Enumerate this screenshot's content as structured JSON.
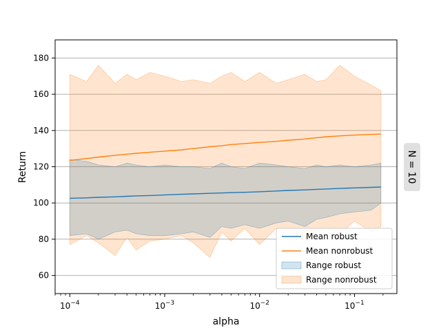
{
  "chart_data": {
    "type": "area",
    "title": "",
    "xlabel": "alpha",
    "ylabel": "Return",
    "xscale": "log",
    "xlim": [
      7e-05,
      0.28
    ],
    "ylim": [
      50,
      190
    ],
    "xticks": [
      {
        "value": 0.0001,
        "base": "10",
        "exp": "−4"
      },
      {
        "value": 0.001,
        "base": "10",
        "exp": "−3"
      },
      {
        "value": 0.01,
        "base": "10",
        "exp": "−2"
      },
      {
        "value": 0.1,
        "base": "10",
        "exp": "−1"
      }
    ],
    "yticks": [
      60,
      80,
      100,
      120,
      140,
      160,
      180
    ],
    "grid": "horizontal",
    "legend_position": "lower-right",
    "facet_label": "N = 10",
    "colors": {
      "robust": "#1f77b4",
      "nonrobust": "#ff7f0e",
      "robust_fill": "#1f77b4",
      "nonrobust_fill": "#ff7f0e",
      "grid": "#b0b0b0",
      "facet_box": "#e0e0e0"
    },
    "x": [
      0.0001,
      0.00015,
      0.0002,
      0.0003,
      0.0004,
      0.0005,
      0.0007,
      0.001,
      0.0015,
      0.002,
      0.003,
      0.004,
      0.005,
      0.007,
      0.01,
      0.015,
      0.02,
      0.03,
      0.04,
      0.05,
      0.07,
      0.1,
      0.15,
      0.19
    ],
    "series": [
      {
        "name": "Mean robust",
        "kind": "line",
        "color": "#1f77b4",
        "values": [
          102.6,
          102.8,
          103.1,
          103.4,
          103.7,
          103.9,
          104.1,
          104.4,
          104.8,
          105.0,
          105.3,
          105.5,
          105.7,
          105.9,
          106.2,
          106.6,
          106.9,
          107.2,
          107.5,
          107.7,
          108.0,
          108.3,
          108.6,
          108.8
        ]
      },
      {
        "name": "Mean nonrobust",
        "kind": "line",
        "color": "#ff7f0e",
        "values": [
          123.5,
          124.5,
          125.3,
          126.3,
          126.9,
          127.4,
          128.0,
          128.6,
          129.3,
          130.0,
          131.0,
          131.6,
          132.2,
          132.8,
          133.4,
          134.0,
          134.6,
          135.3,
          136.0,
          136.5,
          137.0,
          137.5,
          137.8,
          138.0
        ]
      },
      {
        "name": "Range robust",
        "kind": "band",
        "color": "#1f77b4",
        "lower": [
          82,
          83,
          80,
          84,
          85,
          83,
          82,
          82,
          83,
          84,
          81,
          87,
          86,
          88,
          86,
          89,
          90,
          87,
          91,
          92,
          94,
          95,
          96,
          100
        ],
        "upper": [
          124,
          123,
          121,
          120,
          122,
          121,
          120,
          121,
          120,
          120,
          119,
          122,
          120,
          119,
          122,
          121,
          120,
          119,
          121,
          120,
          121,
          120,
          121,
          122
        ]
      },
      {
        "name": "Range nonrobust",
        "kind": "band",
        "color": "#ff7f0e",
        "lower": [
          77,
          82,
          78,
          71,
          81,
          74,
          79,
          80,
          82,
          78,
          70,
          84,
          79,
          86,
          77,
          86,
          85,
          79,
          84,
          86,
          83,
          90,
          84,
          87
        ],
        "upper": [
          171,
          167,
          176,
          166,
          171,
          168,
          172,
          170,
          167,
          168,
          166,
          170,
          172,
          167,
          172,
          166,
          168,
          171,
          167,
          168,
          176,
          170,
          165,
          162
        ]
      }
    ]
  }
}
